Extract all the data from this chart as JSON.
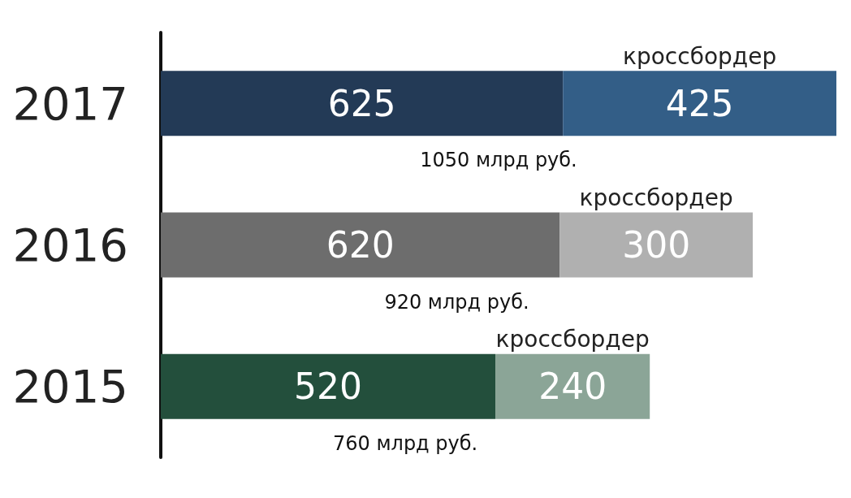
{
  "chart_data": {
    "type": "bar",
    "orientation": "horizontal",
    "stacked": true,
    "categories": [
      "2017",
      "2016",
      "2015"
    ],
    "series": [
      {
        "colors": [
          "#233a56",
          "#6d6d6d",
          "#234f3c"
        ],
        "values": [
          625,
          620,
          520
        ]
      },
      {
        "name": "кроссбордер",
        "colors": [
          "#335e87",
          "#b0b0b0",
          "#8ba597"
        ],
        "values": [
          425,
          300,
          240
        ]
      }
    ],
    "data_labels": true,
    "totals": [
      "1050 млрд руб.",
      "920 млрд руб.",
      "760 млрд руб."
    ],
    "tick_labels": "y",
    "legend": false
  }
}
